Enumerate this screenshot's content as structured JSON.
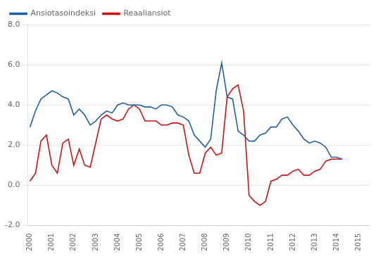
{
  "chart_data": {
    "type": "line",
    "x": [
      2000,
      2000.25,
      2000.5,
      2000.75,
      2001,
      2001.25,
      2001.5,
      2001.75,
      2002,
      2002.25,
      2002.5,
      2002.75,
      2003,
      2003.25,
      2003.5,
      2003.75,
      2004,
      2004.25,
      2004.5,
      2004.75,
      2005,
      2005.25,
      2005.5,
      2005.75,
      2006,
      2006.25,
      2006.5,
      2006.75,
      2007,
      2007.25,
      2007.5,
      2007.75,
      2008,
      2008.25,
      2008.5,
      2008.75,
      2009,
      2009.25,
      2009.5,
      2009.75,
      2010,
      2010.25,
      2010.5,
      2010.75,
      2011,
      2011.25,
      2011.5,
      2011.75,
      2012,
      2012.25,
      2012.5,
      2012.75,
      2013,
      2013.25,
      2013.5,
      2013.75,
      2014,
      2014.25
    ],
    "series": [
      {
        "name": "Ansiotasoindeksi",
        "color": "#1f5fa6",
        "values": [
          2.9,
          3.7,
          4.3,
          4.5,
          4.7,
          4.6,
          4.4,
          4.3,
          3.5,
          3.8,
          3.5,
          3.0,
          3.2,
          3.5,
          3.7,
          3.6,
          4.0,
          4.1,
          4.0,
          4.0,
          4.0,
          3.9,
          3.9,
          3.8,
          4.0,
          4.0,
          3.9,
          3.5,
          3.4,
          3.2,
          2.5,
          2.2,
          1.9,
          2.3,
          4.7,
          6.1,
          4.4,
          4.3,
          2.7,
          2.5,
          2.2,
          2.2,
          2.5,
          2.6,
          2.9,
          2.9,
          3.3,
          3.4,
          3.0,
          2.7,
          2.3,
          2.1,
          2.2,
          2.1,
          1.9,
          1.4,
          1.4,
          1.3
        ]
      },
      {
        "name": "Reaaliansiot",
        "color": "#cc1111",
        "values": [
          0.2,
          0.6,
          2.2,
          2.5,
          1.0,
          0.6,
          2.1,
          2.3,
          1.0,
          1.8,
          1.0,
          0.9,
          2.1,
          3.3,
          3.5,
          3.3,
          3.2,
          3.3,
          3.8,
          4.0,
          3.8,
          3.2,
          3.2,
          3.2,
          3.0,
          3.0,
          3.1,
          3.1,
          3.0,
          1.5,
          0.6,
          0.6,
          1.6,
          1.9,
          1.5,
          1.6,
          4.4,
          4.8,
          5.0,
          3.7,
          -0.5,
          -0.8,
          -1.0,
          -0.8,
          0.2,
          0.3,
          0.5,
          0.5,
          0.7,
          0.8,
          0.5,
          0.5,
          0.7,
          0.8,
          1.2,
          1.3,
          1.3,
          1.3
        ]
      }
    ],
    "xlim": [
      1999.9,
      2015.5
    ],
    "xticks": [
      2000,
      2001,
      2002,
      2003,
      2004,
      2005,
      2006,
      2007,
      2008,
      2009,
      2010,
      2011,
      2012,
      2013,
      2014,
      2015
    ],
    "ylim": [
      -2.0,
      8.0
    ],
    "yticks": [
      {
        "value": -2.0,
        "label": "-2.0"
      },
      {
        "value": 0.0,
        "label": "0.0"
      },
      {
        "value": 2.0,
        "label": "2.0"
      },
      {
        "value": 4.0,
        "label": "4.0"
      },
      {
        "value": 6.0,
        "label": "6.0"
      },
      {
        "value": 8.0,
        "label": "8.0"
      }
    ],
    "grid": "y",
    "legend": "upper left"
  }
}
